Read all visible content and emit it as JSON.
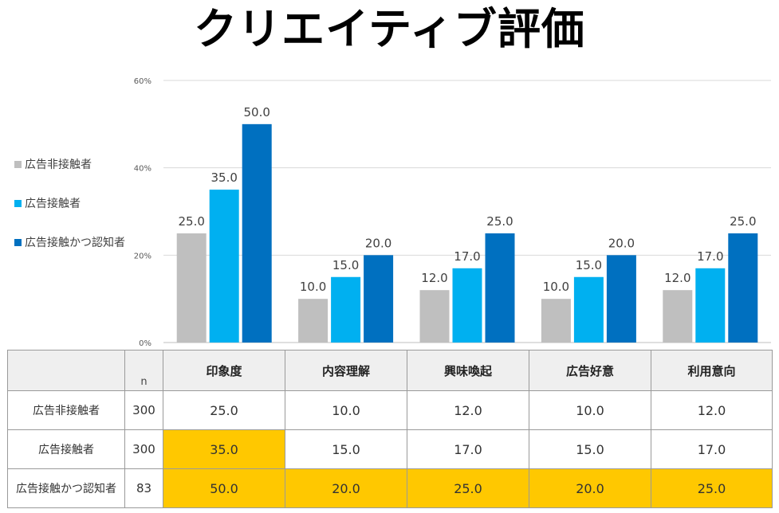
{
  "title": "クリエイティブ評価",
  "chart_data": {
    "type": "bar",
    "title": "クリエイティブ評価",
    "categories": [
      "印象度",
      "内容理解",
      "興味喚起",
      "広告好意",
      "利用意向"
    ],
    "series": [
      {
        "name": "広告非接触者",
        "color": "#bfbfbf",
        "values": [
          25.0,
          10.0,
          12.0,
          10.0,
          12.0
        ]
      },
      {
        "name": "広告接触者",
        "color": "#00b0f0",
        "values": [
          35.0,
          15.0,
          17.0,
          15.0,
          17.0
        ]
      },
      {
        "name": "広告接触かつ認知者",
        "color": "#0070c0",
        "values": [
          50.0,
          20.0,
          25.0,
          20.0,
          25.0
        ]
      }
    ],
    "ylim": [
      0,
      60
    ],
    "yticks": [
      "0%",
      "20%",
      "40%",
      "60%"
    ],
    "ytick_values": [
      0,
      20,
      40,
      60
    ],
    "grid": true,
    "legend_position": "left"
  },
  "table": {
    "n_header": "n",
    "columns": [
      "印象度",
      "内容理解",
      "興味喚起",
      "広告好意",
      "利用意向"
    ],
    "rows": [
      {
        "label": "広告非接触者",
        "n": "300",
        "values": [
          "25.0",
          "10.0",
          "12.0",
          "10.0",
          "12.0"
        ],
        "highlight": []
      },
      {
        "label": "広告接触者",
        "n": "300",
        "values": [
          "35.0",
          "15.0",
          "17.0",
          "15.0",
          "17.0"
        ],
        "highlight": [
          0
        ]
      },
      {
        "label": "広告接触かつ認知者",
        "n": "83",
        "values": [
          "50.0",
          "20.0",
          "25.0",
          "20.0",
          "25.0"
        ],
        "highlight": [
          0,
          1,
          2,
          3,
          4
        ]
      }
    ],
    "highlight_color": "#ffc800"
  }
}
